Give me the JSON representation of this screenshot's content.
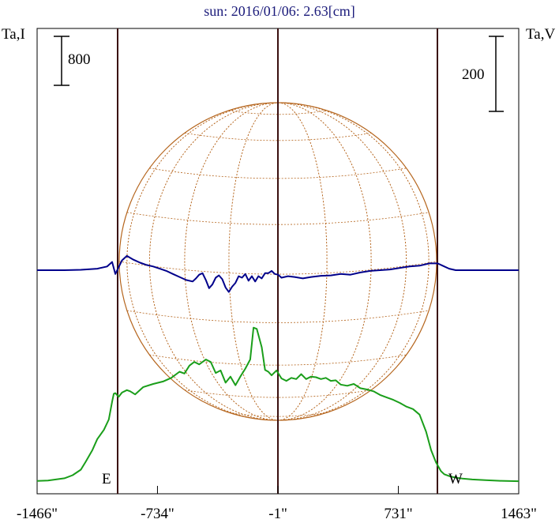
{
  "title": "sun: 2016/01/06: 2.63[cm]",
  "chart_data": {
    "type": "line",
    "title": "sun: 2016/01/06: 2.63[cm]",
    "xlabel": "",
    "ylabel_left": "Ta,I",
    "ylabel_right": "Ta,V",
    "x_ticks": [
      "-1466\"",
      "-734\"",
      "-1\"",
      "731\"",
      "1463\""
    ],
    "x_tick_values": [
      -1466,
      -734,
      -1,
      731,
      1463
    ],
    "xlim": [
      -1466,
      1463
    ],
    "scale_bar_left": "800",
    "scale_bar_right": "200",
    "markers": [
      {
        "label": "E",
        "x": -1000
      },
      {
        "label": "W",
        "x": 990
      }
    ],
    "grid": false,
    "series": [
      {
        "id": "I",
        "color": "#1a9e1a",
        "x": [
          -1466,
          -1400,
          -1300,
          -1250,
          -1200,
          -1170,
          -1130,
          -1100,
          -1060,
          -1030,
          -1010,
          -1000,
          -990,
          -970,
          -950,
          -920,
          -900,
          -870,
          -820,
          -760,
          -700,
          -650,
          -600,
          -570,
          -540,
          -510,
          -480,
          -440,
          -410,
          -380,
          -350,
          -320,
          -290,
          -260,
          -230,
          -200,
          -170,
          -150,
          -130,
          -100,
          -80,
          -60,
          -40,
          -10,
          20,
          50,
          80,
          110,
          140,
          170,
          200,
          230,
          260,
          290,
          320,
          350,
          380,
          420,
          460,
          500,
          540,
          580,
          620,
          660,
          700,
          740,
          780,
          820,
          860,
          900,
          930,
          960,
          990,
          1010,
          1040,
          1080,
          1120,
          1180,
          1260,
          1350,
          1463
        ],
        "y": [
          15,
          22,
          60,
          110,
          200,
          330,
          520,
          700,
          850,
          1020,
          1310,
          1440,
          1450,
          1390,
          1460,
          1500,
          1480,
          1430,
          1550,
          1600,
          1640,
          1700,
          1800,
          1770,
          1900,
          1960,
          1920,
          2000,
          1960,
          1780,
          1820,
          1620,
          1720,
          1580,
          1720,
          1850,
          2000,
          2520,
          2500,
          2200,
          1830,
          1800,
          1740,
          1820,
          1690,
          1650,
          1700,
          1680,
          1760,
          1680,
          1720,
          1710,
          1680,
          1700,
          1650,
          1660,
          1590,
          1570,
          1600,
          1530,
          1510,
          1480,
          1420,
          1380,
          1340,
          1290,
          1230,
          1190,
          1100,
          820,
          520,
          320,
          175,
          125,
          95,
          70,
          55,
          40,
          28,
          18,
          12
        ]
      },
      {
        "id": "V",
        "color": "#00008b",
        "x": [
          -1466,
          -1300,
          -1200,
          -1100,
          -1040,
          -1010,
          -990,
          -970,
          -950,
          -920,
          -880,
          -840,
          -800,
          -760,
          -720,
          -680,
          -640,
          -600,
          -560,
          -520,
          -500,
          -480,
          -460,
          -440,
          -420,
          -400,
          -380,
          -360,
          -340,
          -320,
          -300,
          -280,
          -260,
          -240,
          -220,
          -200,
          -180,
          -160,
          -140,
          -120,
          -100,
          -80,
          -60,
          -40,
          -20,
          0,
          20,
          60,
          100,
          150,
          200,
          260,
          320,
          380,
          440,
          500,
          560,
          620,
          680,
          740,
          800,
          860,
          920,
          970,
          1000,
          1040,
          1080,
          1120,
          1160,
          1200,
          1300,
          1463
        ],
        "y": [
          0,
          0,
          1,
          4,
          10,
          22,
          -10,
          8,
          26,
          38,
          28,
          20,
          14,
          10,
          4,
          -2,
          -10,
          -18,
          -26,
          -30,
          -22,
          -12,
          -8,
          -26,
          -48,
          -38,
          -20,
          -14,
          -24,
          -46,
          -58,
          -44,
          -34,
          -16,
          -20,
          -10,
          -28,
          -16,
          -30,
          -16,
          -22,
          -8,
          -8,
          -2,
          -10,
          -12,
          -20,
          -16,
          -18,
          -22,
          -18,
          -15,
          -14,
          -10,
          -12,
          -6,
          -2,
          0,
          2,
          6,
          10,
          12,
          18,
          18,
          12,
          4,
          0,
          0,
          0,
          0,
          0,
          0
        ]
      }
    ]
  }
}
